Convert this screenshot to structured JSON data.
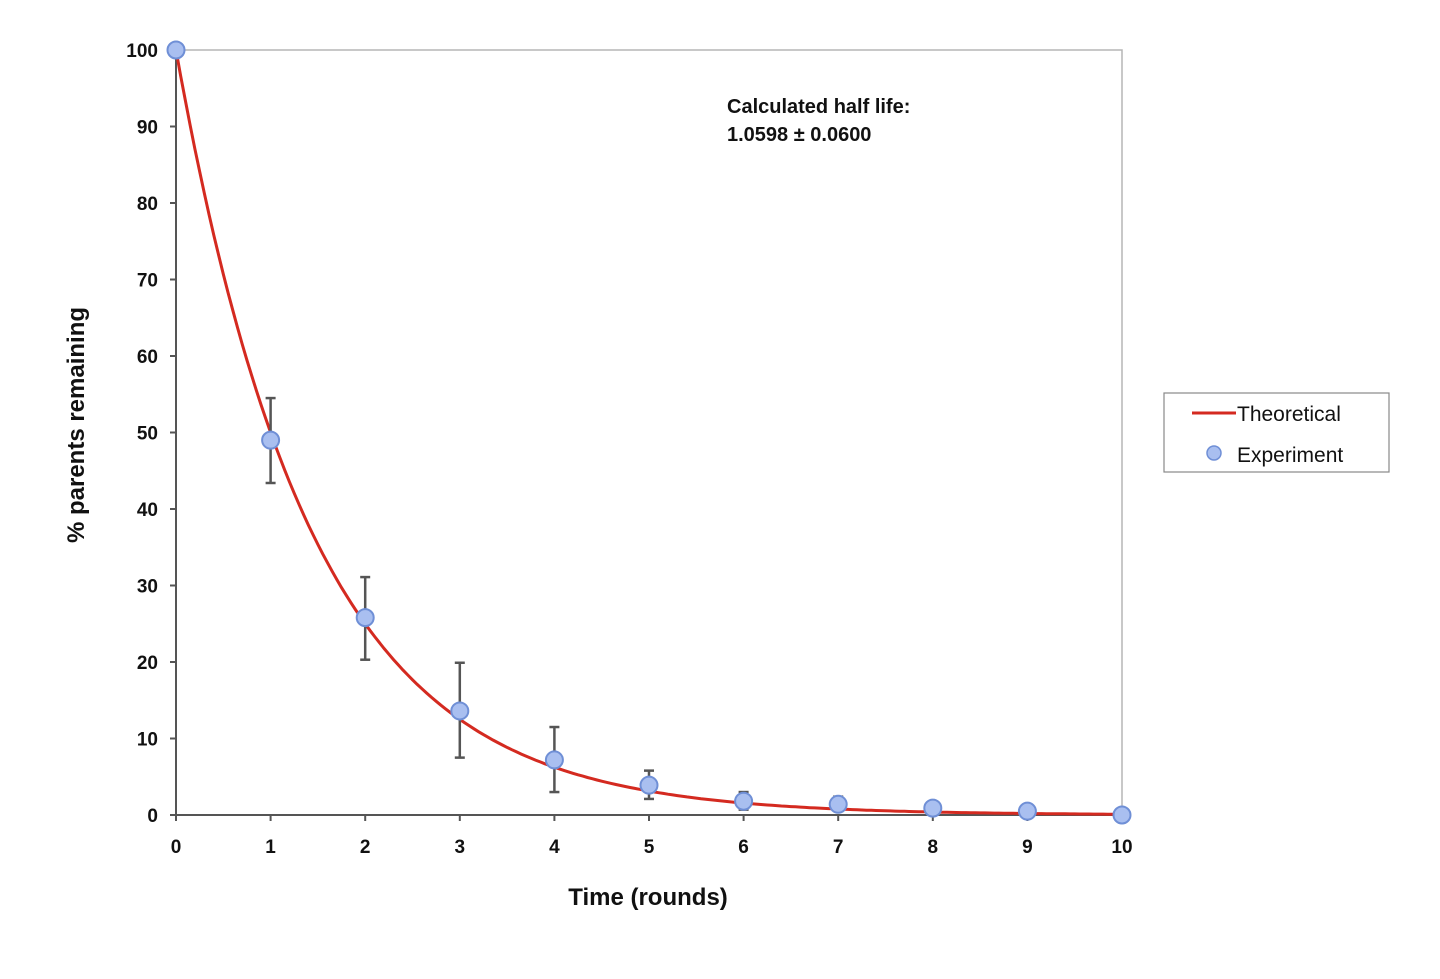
{
  "chart_data": {
    "type": "scatter",
    "xlabel": "Time (rounds)",
    "ylabel": "% parents remaining",
    "xlim": [
      0,
      10
    ],
    "ylim": [
      0,
      100
    ],
    "xticks": [
      0,
      1,
      2,
      3,
      4,
      5,
      6,
      7,
      8,
      9,
      10
    ],
    "yticks": [
      0,
      10,
      20,
      30,
      40,
      50,
      60,
      70,
      80,
      90,
      100
    ],
    "grid": false,
    "legend_position": "right",
    "annotation": [
      "Calculated half life:",
      "1.0598 ± 0.0600"
    ],
    "series": [
      {
        "name": "Theoretical",
        "kind": "line",
        "color": "#d42a20",
        "x": [
          0,
          1,
          2,
          3,
          4,
          5,
          6,
          7,
          8,
          9,
          10
        ],
        "y": [
          100,
          50,
          25,
          12.5,
          6.25,
          3.13,
          1.56,
          0.78,
          0.39,
          0.2,
          0.1
        ]
      },
      {
        "name": "Experiment",
        "kind": "scatter",
        "color": "#a9bff0",
        "edge_color": "#6f8fd6",
        "x": [
          0,
          1,
          2,
          3,
          4,
          5,
          6,
          7,
          8,
          9,
          10
        ],
        "y": [
          100,
          49.0,
          25.8,
          13.6,
          7.2,
          3.9,
          1.8,
          1.4,
          0.9,
          0.5,
          0
        ],
        "err_low": [
          null,
          43.4,
          20.3,
          7.5,
          3.0,
          2.1,
          0.7,
          0.5,
          null,
          null,
          null
        ],
        "err_high": [
          null,
          54.5,
          31.1,
          19.9,
          11.5,
          5.8,
          3.0,
          2.4,
          null,
          null,
          null
        ]
      }
    ]
  }
}
